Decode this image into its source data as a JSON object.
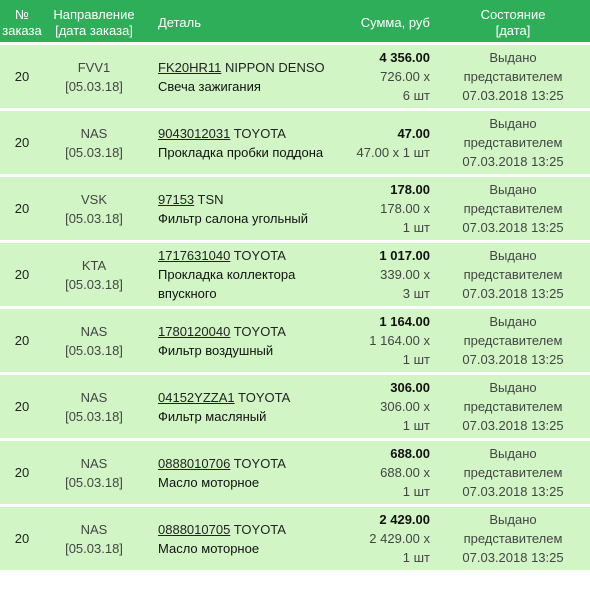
{
  "header": {
    "no_line1": "№",
    "no_line2": "заказа",
    "direction_line1": "Направление",
    "direction_line2": "[дата заказа]",
    "detail": "Деталь",
    "sum": "Сумма, руб",
    "state_line1": "Состояние",
    "state_line2": "[дата]"
  },
  "rows": [
    {
      "order_no": "20",
      "direction": "FVV1",
      "order_date": "[05.03.18]",
      "code": "FK20HR11",
      "brand": "NIPPON DENSO",
      "description": "Свеча зажигания",
      "total": "4 356.00",
      "unit_price": "726.00 x",
      "qty": "6 шт",
      "price_qty": "",
      "state_line1": "Выдано",
      "state_line2": "представителем",
      "state_date": "07.03.2018 13:25"
    },
    {
      "order_no": "20",
      "direction": "NAS",
      "order_date": "[05.03.18]",
      "code": "9043012031",
      "brand": "TOYOTA",
      "description": "Прокладка пробки поддона",
      "total": "47.00",
      "unit_price": "",
      "qty": "",
      "price_qty": "47.00 x 1 шт",
      "state_line1": "Выдано",
      "state_line2": "представителем",
      "state_date": "07.03.2018 13:25"
    },
    {
      "order_no": "20",
      "direction": "VSK",
      "order_date": "[05.03.18]",
      "code": "97153",
      "brand": "TSN",
      "description": "Фильтр салона угольный",
      "total": "178.00",
      "unit_price": "178.00 x",
      "qty": "1 шт",
      "price_qty": "",
      "state_line1": "Выдано",
      "state_line2": "представителем",
      "state_date": "07.03.2018 13:25"
    },
    {
      "order_no": "20",
      "direction": "KTA",
      "order_date": "[05.03.18]",
      "code": "1717631040",
      "brand": "TOYOTA",
      "description": "Прокладка коллектора впускного",
      "total": "1 017.00",
      "unit_price": "339.00 x",
      "qty": "3 шт",
      "price_qty": "",
      "state_line1": "Выдано",
      "state_line2": "представителем",
      "state_date": "07.03.2018 13:25"
    },
    {
      "order_no": "20",
      "direction": "NAS",
      "order_date": "[05.03.18]",
      "code": "1780120040",
      "brand": "TOYOTA",
      "description": "Фильтр воздушный",
      "total": "1 164.00",
      "unit_price": "1 164.00 x",
      "qty": "1 шт",
      "price_qty": "",
      "state_line1": "Выдано",
      "state_line2": "представителем",
      "state_date": "07.03.2018 13:25"
    },
    {
      "order_no": "20",
      "direction": "NAS",
      "order_date": "[05.03.18]",
      "code": "04152YZZA1",
      "brand": "TOYOTA",
      "description": "Фильтр масляный",
      "total": "306.00",
      "unit_price": "306.00 x",
      "qty": "1 шт",
      "price_qty": "",
      "state_line1": "Выдано",
      "state_line2": "представителем",
      "state_date": "07.03.2018 13:25"
    },
    {
      "order_no": "20",
      "direction": "NAS",
      "order_date": "[05.03.18]",
      "code": "0888010706",
      "brand": "TOYOTA",
      "description": "Масло моторное",
      "total": "688.00",
      "unit_price": "688.00 x",
      "qty": "1 шт",
      "price_qty": "",
      "state_line1": "Выдано",
      "state_line2": "представителем",
      "state_date": "07.03.2018 13:25"
    },
    {
      "order_no": "20",
      "direction": "NAS",
      "order_date": "[05.03.18]",
      "code": "0888010705",
      "brand": "TOYOTA",
      "description": "Масло моторное",
      "total": "2 429.00",
      "unit_price": "2 429.00 x",
      "qty": "1 шт",
      "price_qty": "",
      "state_line1": "Выдано",
      "state_line2": "представителем",
      "state_date": "07.03.2018 13:25"
    }
  ]
}
